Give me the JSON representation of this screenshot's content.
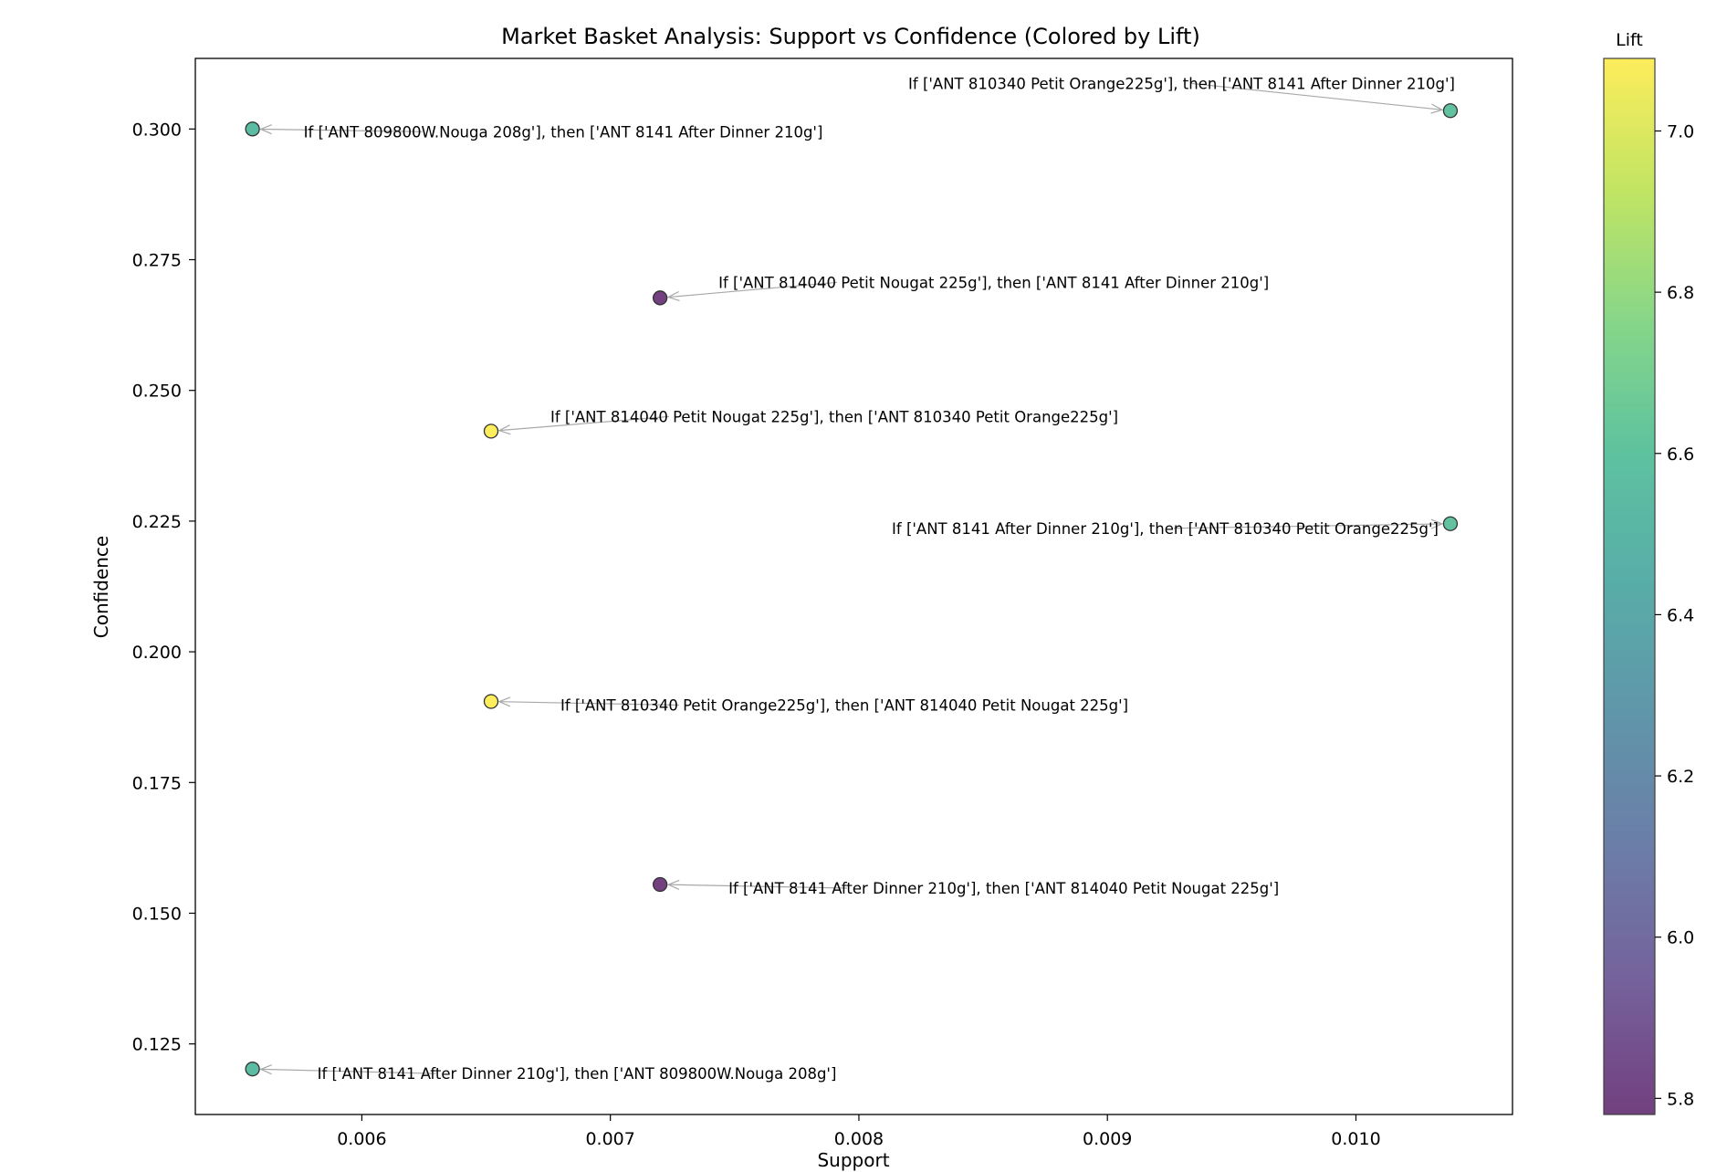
{
  "chart_data": {
    "type": "scatter",
    "title": "Market Basket Analysis: Support vs Confidence (Colored by Lift)",
    "xlabel": "Support",
    "ylabel": "Confidence",
    "xlim": [
      0.00533,
      0.01063
    ],
    "ylim": [
      0.1115,
      0.3135
    ],
    "xticks": [
      0.006,
      0.007,
      0.008,
      0.009,
      0.01
    ],
    "xtick_labels": [
      "0.006",
      "0.007",
      "0.008",
      "0.009",
      "0.010"
    ],
    "yticks": [
      0.125,
      0.15,
      0.175,
      0.2,
      0.225,
      0.25,
      0.275,
      0.3
    ],
    "ytick_labels": [
      "0.125",
      "0.150",
      "0.175",
      "0.200",
      "0.225",
      "0.250",
      "0.275",
      "0.300"
    ],
    "grid": false,
    "colormap": "viridis",
    "colorbar": {
      "title": "Lift",
      "range": [
        5.78,
        7.09
      ],
      "ticks": [
        5.8,
        6.0,
        6.2,
        6.4,
        6.6,
        6.8,
        7.0
      ],
      "tick_labels": [
        "5.8",
        "6.0",
        "6.2",
        "6.4",
        "6.6",
        "6.8",
        "7.0"
      ]
    },
    "points": [
      {
        "support": 0.01038,
        "confidence": 0.3035,
        "lift": 6.6,
        "label": "If ['ANT 810340 Petit Orange225g'], then ['ANT 8141 After Dinner 210g']"
      },
      {
        "support": 0.00556,
        "confidence": 0.3,
        "lift": 6.55,
        "label": "If ['ANT 809800W.Nouga 208g'], then ['ANT 8141 After Dinner 210g']"
      },
      {
        "support": 0.0072,
        "confidence": 0.2677,
        "lift": 5.78,
        "label": "If ['ANT 814040 Petit Nougat 225g'], then ['ANT 8141 After Dinner 210g']"
      },
      {
        "support": 0.00652,
        "confidence": 0.2422,
        "lift": 7.09,
        "label": "If ['ANT 814040 Petit Nougat 225g'], then ['ANT 810340 Petit Orange225g']"
      },
      {
        "support": 0.01038,
        "confidence": 0.2245,
        "lift": 6.6,
        "label": "If ['ANT 8141 After Dinner 210g'], then ['ANT 810340 Petit Orange225g']"
      },
      {
        "support": 0.00652,
        "confidence": 0.1905,
        "lift": 7.09,
        "label": "If ['ANT 810340 Petit Orange225g'], then ['ANT 814040 Petit Nougat 225g']"
      },
      {
        "support": 0.0072,
        "confidence": 0.1555,
        "lift": 5.78,
        "label": "If ['ANT 8141 After Dinner 210g'], then ['ANT 814040 Petit Nougat 225g']"
      },
      {
        "support": 0.00556,
        "confidence": 0.1202,
        "lift": 6.55,
        "label": "If ['ANT 8141 After Dinner 210g'], then ['ANT 809800W.Nouga 208g']"
      }
    ]
  }
}
